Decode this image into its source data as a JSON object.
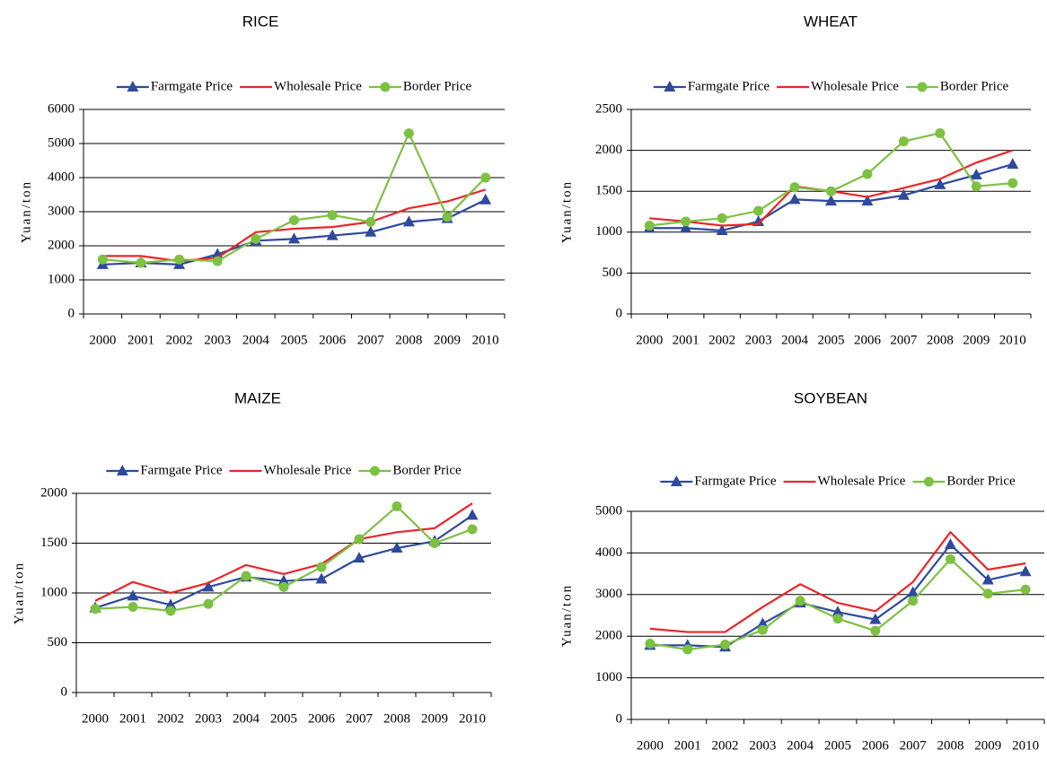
{
  "chart_data": [
    {
      "type": "line",
      "title": "RICE",
      "y_label": "Yuan/ton",
      "categories": [
        "2000",
        "2001",
        "2002",
        "2003",
        "2004",
        "2005",
        "2006",
        "2007",
        "2008",
        "2009",
        "2010"
      ],
      "series": [
        {
          "name": "Farmgate Price",
          "color": "#2e4a9e",
          "marker": "triangle",
          "values": [
            1450,
            1500,
            1450,
            1750,
            2150,
            2200,
            2300,
            2400,
            2700,
            2800,
            3350
          ]
        },
        {
          "name": "Wholesale Price",
          "color": "#e8262b",
          "marker": "none",
          "values": [
            1700,
            1700,
            1550,
            1650,
            2400,
            2500,
            2550,
            2700,
            3100,
            3300,
            3650
          ]
        },
        {
          "name": "Border Price",
          "color": "#7dc142",
          "marker": "circle",
          "values": [
            1600,
            1500,
            1600,
            1550,
            2200,
            2750,
            2900,
            2700,
            5300,
            2850,
            4000
          ]
        }
      ],
      "ylim": [
        0,
        6000
      ],
      "yticks": [
        0,
        1000,
        2000,
        3000,
        4000,
        5000,
        6000
      ],
      "grid": true
    },
    {
      "type": "line",
      "title": "WHEAT",
      "y_label": "Yuan/ton",
      "categories": [
        "2000",
        "2001",
        "2002",
        "2003",
        "2004",
        "2005",
        "2006",
        "2007",
        "2008",
        "2009",
        "2010"
      ],
      "series": [
        {
          "name": "Farmgate Price",
          "color": "#2e4a9e",
          "marker": "triangle",
          "values": [
            1050,
            1050,
            1020,
            1130,
            1400,
            1380,
            1380,
            1450,
            1580,
            1700,
            1830
          ]
        },
        {
          "name": "Wholesale Price",
          "color": "#e8262b",
          "marker": "none",
          "values": [
            1170,
            1130,
            1080,
            1100,
            1560,
            1500,
            1430,
            1540,
            1650,
            1850,
            2000
          ]
        },
        {
          "name": "Border Price",
          "color": "#7dc142",
          "marker": "circle",
          "values": [
            1080,
            1130,
            1170,
            1260,
            1550,
            1500,
            1710,
            2110,
            2210,
            1560,
            1600
          ]
        }
      ],
      "ylim": [
        0,
        2500
      ],
      "yticks": [
        0,
        500,
        1000,
        1500,
        2000,
        2500
      ],
      "grid": true
    },
    {
      "type": "line",
      "title": "MAIZE",
      "y_label": "Yuan/ton",
      "categories": [
        "2000",
        "2001",
        "2002",
        "2003",
        "2004",
        "2005",
        "2006",
        "2007",
        "2008",
        "2009",
        "2010"
      ],
      "series": [
        {
          "name": "Farmgate Price",
          "color": "#2e4a9e",
          "marker": "triangle",
          "values": [
            850,
            970,
            880,
            1060,
            1160,
            1120,
            1140,
            1350,
            1450,
            1520,
            1780
          ]
        },
        {
          "name": "Wholesale Price",
          "color": "#e8262b",
          "marker": "none",
          "values": [
            920,
            1110,
            1000,
            1100,
            1280,
            1190,
            1290,
            1540,
            1610,
            1650,
            1900
          ]
        },
        {
          "name": "Border Price",
          "color": "#7dc142",
          "marker": "circle",
          "values": [
            840,
            860,
            820,
            890,
            1170,
            1060,
            1260,
            1540,
            1870,
            1500,
            1640
          ]
        }
      ],
      "ylim": [
        0,
        2000
      ],
      "yticks": [
        0,
        500,
        1000,
        1500,
        2000
      ],
      "grid": true
    },
    {
      "type": "line",
      "title": "SOYBEAN",
      "y_label": "Yuan/ton",
      "categories": [
        "2000",
        "2001",
        "2002",
        "2003",
        "2004",
        "2005",
        "2006",
        "2007",
        "2008",
        "2009",
        "2010"
      ],
      "series": [
        {
          "name": "Farmgate Price",
          "color": "#2e4a9e",
          "marker": "triangle",
          "values": [
            1780,
            1780,
            1740,
            2300,
            2800,
            2580,
            2400,
            3050,
            4200,
            3350,
            3550
          ]
        },
        {
          "name": "Wholesale Price",
          "color": "#e8262b",
          "marker": "none",
          "values": [
            2180,
            2100,
            2100,
            2700,
            3250,
            2800,
            2600,
            3300,
            4500,
            3600,
            3750
          ]
        },
        {
          "name": "Border Price",
          "color": "#7dc142",
          "marker": "circle",
          "values": [
            1820,
            1680,
            1800,
            2150,
            2850,
            2420,
            2130,
            2850,
            3850,
            3020,
            3120
          ]
        }
      ],
      "ylim": [
        0,
        5000
      ],
      "yticks": [
        0,
        1000,
        2000,
        3000,
        4000,
        5000
      ],
      "grid": true
    }
  ]
}
